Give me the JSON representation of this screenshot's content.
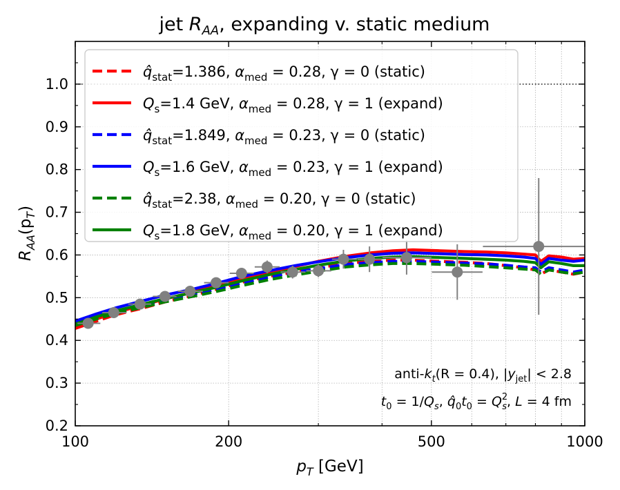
{
  "chart_data": {
    "type": "line",
    "title": "jet R_AA, expanding v. static medium",
    "title_parts": {
      "pre": "jet ",
      "main": "R",
      "sub": "AA",
      "post": ", expanding v. static medium"
    },
    "xlabel": "p_T [GeV]",
    "xlabel_parts": {
      "main": "p",
      "sub": "T",
      "post": " [GeV]"
    },
    "ylabel": "R_AA(p_T)",
    "ylabel_parts": {
      "main": "R",
      "sub": "AA",
      "mid": "(p",
      "sub2": "T",
      "post": ")"
    },
    "xscale": "log",
    "xlim": [
      100,
      1000
    ],
    "ylim": [
      0.2,
      1.1
    ],
    "xticks": [
      100,
      200,
      500,
      1000
    ],
    "xtick_labels": [
      "100",
      "200",
      "500",
      "1000"
    ],
    "yticks": [
      0.2,
      0.3,
      0.4,
      0.5,
      0.6,
      0.7,
      0.8,
      0.9,
      1.0
    ],
    "ytick_labels": [
      "0.2",
      "0.3",
      "0.4",
      "0.5",
      "0.6",
      "0.7",
      "0.8",
      "0.9",
      "1.0"
    ],
    "grid": true,
    "reference_line": {
      "y": 1.0,
      "style": "dotted"
    },
    "legend_position": "top-left",
    "series": [
      {
        "name": "q̂stat=1.386, αmed=0.28, γ=0 (static)",
        "color": "#ff0000",
        "style": "dashed",
        "label_parts": {
          "sym": "q̂",
          "sub": "stat",
          "rest1": "=1.386, ",
          "alpha": "α",
          "asub": "med",
          "rest2": " = 0.28, γ = 0 (static)"
        },
        "x": [
          100,
          110,
          120,
          135,
          150,
          170,
          190,
          210,
          240,
          270,
          300,
          340,
          380,
          420,
          460,
          520,
          580,
          640,
          700,
          760,
          800,
          820,
          850,
          900,
          950,
          1000
        ],
        "y": [
          0.428,
          0.445,
          0.46,
          0.475,
          0.49,
          0.505,
          0.52,
          0.535,
          0.55,
          0.56,
          0.57,
          0.58,
          0.585,
          0.588,
          0.588,
          0.585,
          0.583,
          0.58,
          0.575,
          0.57,
          0.565,
          0.555,
          0.565,
          0.56,
          0.555,
          0.56
        ]
      },
      {
        "name": "Qs=1.4 GeV, αmed=0.28, γ=1 (expand)",
        "color": "#ff0000",
        "style": "solid",
        "label_parts": {
          "sym": "Q",
          "sub": "s",
          "rest1": "=1.4 GeV, ",
          "alpha": "α",
          "asub": "med",
          "rest2": " = 0.28, γ = 1 (expand)"
        },
        "x": [
          100,
          110,
          120,
          135,
          150,
          170,
          190,
          210,
          240,
          270,
          300,
          340,
          380,
          420,
          460,
          520,
          580,
          640,
          700,
          760,
          800,
          820,
          850,
          900,
          950,
          1000
        ],
        "y": [
          0.432,
          0.45,
          0.465,
          0.482,
          0.497,
          0.513,
          0.528,
          0.545,
          0.56,
          0.573,
          0.585,
          0.597,
          0.605,
          0.61,
          0.612,
          0.61,
          0.608,
          0.607,
          0.605,
          0.602,
          0.6,
          0.585,
          0.598,
          0.595,
          0.59,
          0.592
        ]
      },
      {
        "name": "q̂stat=1.849, αmed=0.23, γ=0 (static)",
        "color": "#0000ff",
        "style": "dashed",
        "label_parts": {
          "sym": "q̂",
          "sub": "stat",
          "rest1": "=1.849, ",
          "alpha": "α",
          "asub": "med",
          "rest2": " = 0.23, γ = 0 (static)"
        },
        "x": [
          100,
          110,
          120,
          135,
          150,
          170,
          190,
          210,
          240,
          270,
          300,
          340,
          380,
          420,
          460,
          520,
          580,
          640,
          700,
          760,
          800,
          820,
          850,
          900,
          950,
          1000
        ],
        "y": [
          0.44,
          0.455,
          0.468,
          0.482,
          0.495,
          0.508,
          0.52,
          0.533,
          0.548,
          0.56,
          0.568,
          0.578,
          0.582,
          0.585,
          0.585,
          0.583,
          0.581,
          0.579,
          0.576,
          0.572,
          0.57,
          0.56,
          0.57,
          0.565,
          0.56,
          0.565
        ]
      },
      {
        "name": "Qs=1.6 GeV, αmed=0.23, γ=1 (expand)",
        "color": "#0000ff",
        "style": "solid",
        "label_parts": {
          "sym": "Q",
          "sub": "s",
          "rest1": "=1.6 GeV, ",
          "alpha": "α",
          "asub": "med",
          "rest2": " = 0.23, γ = 1 (expand)"
        },
        "x": [
          100,
          110,
          120,
          135,
          150,
          170,
          190,
          210,
          240,
          270,
          300,
          340,
          380,
          420,
          460,
          520,
          580,
          640,
          700,
          760,
          800,
          820,
          850,
          900,
          950,
          1000
        ],
        "y": [
          0.445,
          0.462,
          0.476,
          0.492,
          0.506,
          0.52,
          0.534,
          0.548,
          0.563,
          0.575,
          0.584,
          0.594,
          0.6,
          0.604,
          0.605,
          0.603,
          0.601,
          0.6,
          0.598,
          0.595,
          0.592,
          0.578,
          0.592,
          0.588,
          0.585,
          0.588
        ]
      },
      {
        "name": "q̂stat=2.38, αmed=0.20, γ=0 (static)",
        "color": "#008000",
        "style": "dashed",
        "label_parts": {
          "sym": "q̂",
          "sub": "stat",
          "rest1": "=2.38, ",
          "alpha": "α",
          "asub": "med",
          "rest2": " = 0.20, γ = 0 (static)"
        },
        "x": [
          100,
          110,
          120,
          135,
          150,
          170,
          190,
          210,
          240,
          270,
          300,
          340,
          380,
          420,
          460,
          520,
          580,
          640,
          700,
          760,
          800,
          820,
          850,
          900,
          950,
          1000
        ],
        "y": [
          0.435,
          0.45,
          0.463,
          0.477,
          0.49,
          0.503,
          0.515,
          0.527,
          0.542,
          0.553,
          0.562,
          0.572,
          0.577,
          0.58,
          0.58,
          0.578,
          0.576,
          0.573,
          0.57,
          0.567,
          0.565,
          0.555,
          0.565,
          0.56,
          0.556,
          0.56
        ]
      },
      {
        "name": "Qs=1.8 GeV, αmed=0.20, γ=1 (expand)",
        "color": "#008000",
        "style": "solid",
        "label_parts": {
          "sym": "Q",
          "sub": "s",
          "rest1": "=1.8 GeV, ",
          "alpha": "α",
          "asub": "med",
          "rest2": " = 0.20, γ = 1 (expand)"
        },
        "x": [
          100,
          110,
          120,
          135,
          150,
          170,
          190,
          210,
          240,
          270,
          300,
          340,
          380,
          420,
          460,
          520,
          580,
          640,
          700,
          760,
          800,
          820,
          850,
          900,
          950,
          1000
        ],
        "y": [
          0.438,
          0.455,
          0.469,
          0.484,
          0.498,
          0.512,
          0.525,
          0.538,
          0.554,
          0.566,
          0.576,
          0.586,
          0.592,
          0.595,
          0.596,
          0.594,
          0.592,
          0.59,
          0.588,
          0.585,
          0.582,
          0.57,
          0.584,
          0.58,
          0.575,
          0.575
        ]
      }
    ],
    "data_points": {
      "color": "#808080",
      "x": [
        106,
        119,
        134,
        150,
        168,
        189,
        212,
        238,
        267,
        300,
        336,
        378,
        447,
        562,
        812
      ],
      "y": [
        0.44,
        0.465,
        0.485,
        0.503,
        0.515,
        0.535,
        0.557,
        0.572,
        0.56,
        0.563,
        0.59,
        0.59,
        0.594,
        0.56,
        0.62
      ],
      "xlo": [
        101,
        113,
        127,
        142,
        159,
        179,
        201,
        225,
        253,
        284,
        319,
        358,
        401,
        501,
        631
      ],
      "xhi": [
        112,
        126,
        141,
        158,
        178,
        200,
        224,
        252,
        283,
        318,
        357,
        400,
        500,
        630,
        1000
      ],
      "yerr": [
        0.005,
        0.005,
        0.005,
        0.006,
        0.008,
        0.01,
        0.012,
        0.015,
        0.015,
        0.015,
        0.022,
        0.03,
        0.04,
        0.065,
        0.16
      ]
    },
    "annotations": [
      {
        "text": "anti-k_t(R = 0.4), |y_jet| < 2.8",
        "parts": {
          "pre": "anti-",
          "k": "k",
          "ksub": "t",
          "mid": "(R = 0.4), |",
          "y": "y",
          "ysub": "jet",
          "post": "| < 2.8"
        }
      },
      {
        "text": "t_0 = 1/Q_s, q̂_0 t_0 = Q_s^2, L = 4 fm",
        "parts": {
          "t": "t",
          "tsub": "0",
          "a": " = 1/",
          "q": "Q",
          "qsub": "s",
          "b": ", ",
          "qh": "q̂",
          "qhsub": "0",
          "t2": "t",
          "t2sub": "0",
          "c": " = ",
          "q2": "Q",
          "q2sup": "2",
          "q2sub": "s",
          "d": ", ",
          "l": "L",
          "e": " = 4 fm"
        }
      }
    ]
  }
}
